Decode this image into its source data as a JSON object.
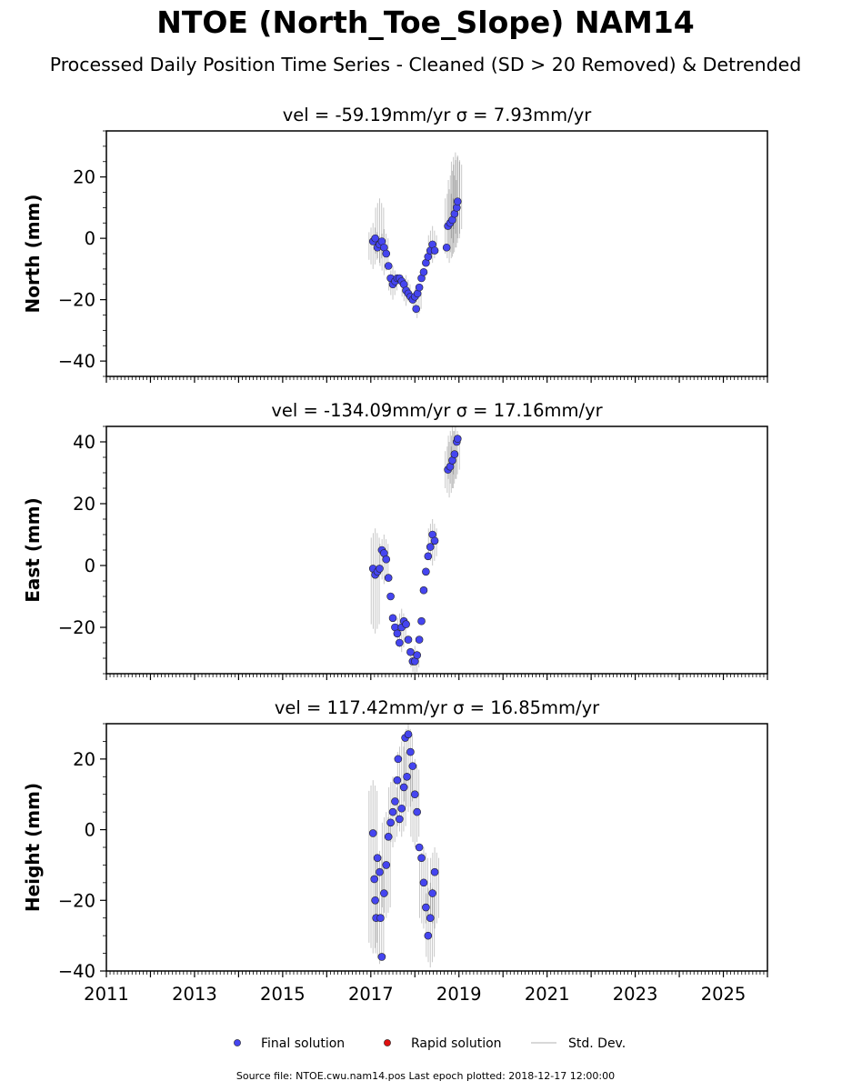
{
  "title": "NTOE (North_Toe_Slope) NAM14",
  "subtitle": "Processed Daily Position Time Series - Cleaned (SD > 20 Removed) & Detrended",
  "source_note": "Source file: NTOE.cwu.nam14.pos  Last epoch plotted: 2018-12-17 12:00:00",
  "colors": {
    "final": "#4545f0",
    "rapid": "#e01010",
    "stddev": "#000000"
  },
  "chart_data": [
    {
      "type": "scatter",
      "panel": "north",
      "title": "vel = -59.19mm/yr   σ = 7.93mm/yr",
      "ylabel": "North (mm)",
      "xlim": [
        2011,
        2026
      ],
      "ylim": [
        -45,
        35
      ],
      "yticks": [
        -40,
        -20,
        0,
        20
      ],
      "xticks": [],
      "x_tick_labels_shown": false,
      "series": [
        {
          "name": "Final solution",
          "points": [
            [
              2017.05,
              -1
            ],
            [
              2017.1,
              0
            ],
            [
              2017.15,
              -3
            ],
            [
              2017.2,
              -2
            ],
            [
              2017.25,
              -1
            ],
            [
              2017.3,
              -3
            ],
            [
              2017.35,
              -5
            ],
            [
              2017.4,
              -9
            ],
            [
              2017.45,
              -13
            ],
            [
              2017.5,
              -15
            ],
            [
              2017.55,
              -14
            ],
            [
              2017.6,
              -13
            ],
            [
              2017.65,
              -13
            ],
            [
              2017.7,
              -14
            ],
            [
              2017.75,
              -15
            ],
            [
              2017.8,
              -17
            ],
            [
              2017.85,
              -18
            ],
            [
              2017.9,
              -19
            ],
            [
              2017.95,
              -20
            ],
            [
              2018.0,
              -19
            ],
            [
              2018.03,
              -23
            ],
            [
              2018.06,
              -18
            ],
            [
              2018.1,
              -16
            ],
            [
              2018.15,
              -13
            ],
            [
              2018.2,
              -11
            ],
            [
              2018.25,
              -8
            ],
            [
              2018.3,
              -6
            ],
            [
              2018.35,
              -4
            ],
            [
              2018.4,
              -2
            ],
            [
              2018.45,
              -4
            ],
            [
              2018.72,
              -3
            ],
            [
              2018.75,
              4
            ],
            [
              2018.8,
              5
            ],
            [
              2018.85,
              6
            ],
            [
              2018.9,
              8
            ],
            [
              2018.95,
              10
            ],
            [
              2018.97,
              12
            ]
          ]
        }
      ],
      "stddev_segments": [
        [
          2017.05,
          -10,
          5
        ],
        [
          2017.2,
          -8,
          13
        ],
        [
          2017.3,
          -12,
          3
        ],
        [
          2017.5,
          -20,
          -9
        ],
        [
          2017.8,
          -22,
          -12
        ],
        [
          2018.05,
          -26,
          -15
        ],
        [
          2018.4,
          -8,
          4
        ],
        [
          2018.78,
          -8,
          16
        ],
        [
          2018.85,
          -6,
          22
        ],
        [
          2018.92,
          -3,
          28
        ],
        [
          2018.97,
          0,
          27
        ]
      ]
    },
    {
      "type": "scatter",
      "panel": "east",
      "title": "vel = -134.09mm/yr   σ = 17.16mm/yr",
      "ylabel": "East (mm)",
      "xlim": [
        2011,
        2026
      ],
      "ylim": [
        -35,
        45
      ],
      "yticks": [
        -20,
        0,
        20,
        40
      ],
      "xticks": [],
      "x_tick_labels_shown": false,
      "series": [
        {
          "name": "Final solution",
          "points": [
            [
              2017.05,
              -1
            ],
            [
              2017.1,
              -3
            ],
            [
              2017.15,
              -2
            ],
            [
              2017.2,
              -1
            ],
            [
              2017.25,
              5
            ],
            [
              2017.3,
              4
            ],
            [
              2017.35,
              2
            ],
            [
              2017.4,
              -4
            ],
            [
              2017.45,
              -10
            ],
            [
              2017.5,
              -17
            ],
            [
              2017.55,
              -20
            ],
            [
              2017.6,
              -22
            ],
            [
              2017.65,
              -25
            ],
            [
              2017.7,
              -20
            ],
            [
              2017.75,
              -18
            ],
            [
              2017.8,
              -19
            ],
            [
              2017.85,
              -24
            ],
            [
              2017.9,
              -28
            ],
            [
              2017.95,
              -31
            ],
            [
              2018.0,
              -31
            ],
            [
              2018.05,
              -29
            ],
            [
              2018.1,
              -24
            ],
            [
              2018.15,
              -18
            ],
            [
              2018.2,
              -8
            ],
            [
              2018.25,
              -2
            ],
            [
              2018.3,
              3
            ],
            [
              2018.35,
              6
            ],
            [
              2018.4,
              10
            ],
            [
              2018.45,
              8
            ],
            [
              2018.75,
              31
            ],
            [
              2018.8,
              32
            ],
            [
              2018.85,
              34
            ],
            [
              2018.9,
              36
            ],
            [
              2018.95,
              40
            ],
            [
              2018.97,
              41
            ]
          ]
        }
      ],
      "stddev_segments": [
        [
          2017.1,
          -22,
          12
        ],
        [
          2017.3,
          -6,
          10
        ],
        [
          2017.7,
          -28,
          -14
        ],
        [
          2018.0,
          -36,
          -26
        ],
        [
          2018.4,
          0,
          15
        ],
        [
          2018.78,
          22,
          40
        ],
        [
          2018.85,
          25,
          45
        ],
        [
          2018.92,
          28,
          45
        ]
      ]
    },
    {
      "type": "scatter",
      "panel": "height",
      "title": "vel = 117.42mm/yr   σ = 16.85mm/yr",
      "ylabel": "Height (mm)",
      "xlim": [
        2011,
        2026
      ],
      "ylim": [
        -40,
        30
      ],
      "yticks": [
        -40,
        -20,
        0,
        20
      ],
      "xticks": [
        2011,
        2013,
        2015,
        2017,
        2019,
        2021,
        2023,
        2025
      ],
      "x_tick_labels_shown": true,
      "series": [
        {
          "name": "Final solution",
          "points": [
            [
              2017.05,
              -1
            ],
            [
              2017.08,
              -14
            ],
            [
              2017.1,
              -20
            ],
            [
              2017.12,
              -25
            ],
            [
              2017.15,
              -8
            ],
            [
              2017.2,
              -12
            ],
            [
              2017.22,
              -25
            ],
            [
              2017.25,
              -36
            ],
            [
              2017.3,
              -18
            ],
            [
              2017.35,
              -10
            ],
            [
              2017.4,
              -2
            ],
            [
              2017.45,
              2
            ],
            [
              2017.5,
              5
            ],
            [
              2017.55,
              8
            ],
            [
              2017.6,
              14
            ],
            [
              2017.62,
              20
            ],
            [
              2017.65,
              3
            ],
            [
              2017.7,
              6
            ],
            [
              2017.75,
              12
            ],
            [
              2017.78,
              26
            ],
            [
              2017.82,
              15
            ],
            [
              2017.85,
              27
            ],
            [
              2017.9,
              22
            ],
            [
              2017.95,
              18
            ],
            [
              2018.0,
              10
            ],
            [
              2018.05,
              5
            ],
            [
              2018.1,
              -5
            ],
            [
              2018.15,
              -8
            ],
            [
              2018.2,
              -15
            ],
            [
              2018.25,
              -22
            ],
            [
              2018.3,
              -30
            ],
            [
              2018.35,
              -25
            ],
            [
              2018.4,
              -18
            ],
            [
              2018.45,
              -12
            ]
          ]
        }
      ],
      "stddev_segments": [
        [
          2017.05,
          -35,
          14
        ],
        [
          2017.2,
          -38,
          -6
        ],
        [
          2017.35,
          -25,
          5
        ],
        [
          2017.5,
          -5,
          15
        ],
        [
          2017.7,
          -2,
          25
        ],
        [
          2017.85,
          5,
          30
        ],
        [
          2018.0,
          -5,
          20
        ],
        [
          2018.2,
          -28,
          -5
        ],
        [
          2018.35,
          -39,
          -15
        ],
        [
          2018.45,
          -28,
          -5
        ]
      ]
    }
  ],
  "legend": {
    "placement": "bottom-center",
    "entries": [
      {
        "label": "Final solution",
        "marker": "dot",
        "color": "#4545f0"
      },
      {
        "label": "Rapid solution",
        "marker": "dot",
        "color": "#e01010"
      },
      {
        "label": "Std. Dev.",
        "marker": "line",
        "color": "#cccccc"
      }
    ]
  }
}
